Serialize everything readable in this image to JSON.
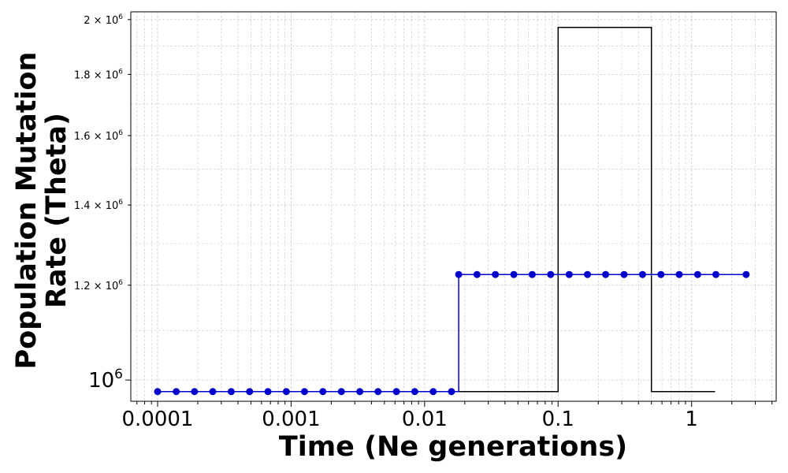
{
  "chart_data": {
    "type": "line",
    "title": "",
    "xlabel": "Time (Ne generations)",
    "ylabel_line1": "Population Mutation",
    "ylabel_line2": "Rate (Theta)",
    "x_scale": "log",
    "y_scale": "log",
    "xlim": [
      6.3e-05,
      4.3
    ],
    "ylim": [
      960000,
      2030000
    ],
    "grid": "both (major and minor), dashed",
    "x_ticks": [
      {
        "value": 0.0001,
        "label": "0.0001"
      },
      {
        "value": 0.001,
        "label": "0.001"
      },
      {
        "value": 0.01,
        "label": "0.01"
      },
      {
        "value": 0.1,
        "label": "0.1"
      },
      {
        "value": 1,
        "label": "1"
      }
    ],
    "y_ticks": [
      {
        "value": 1000000,
        "label_base": "10",
        "label_exp": "6",
        "size": "major"
      },
      {
        "value": 1200000,
        "label_base": "1.2 × 10",
        "label_exp": "6",
        "size": "minor"
      },
      {
        "value": 1400000,
        "label_base": "1.4 × 10",
        "label_exp": "6",
        "size": "minor"
      },
      {
        "value": 1600000,
        "label_base": "1.6 × 10",
        "label_exp": "6",
        "size": "minor"
      },
      {
        "value": 1800000,
        "label_base": "1.8 × 10",
        "label_exp": "6",
        "size": "minor"
      },
      {
        "value": 2000000,
        "label_base": "2 × 10",
        "label_exp": "6",
        "size": "minor"
      }
    ],
    "series": [
      {
        "color": "#000000",
        "markers": false,
        "step": true,
        "x": [
          0.0001,
          0.1,
          0.1,
          0.5,
          0.5,
          1.5
        ],
        "y": [
          978000,
          978000,
          1970000,
          1970000,
          978000,
          978000
        ]
      },
      {
        "color": "#0000cc",
        "markers": true,
        "step": true,
        "change_point": 0.018,
        "y_before": 978000,
        "y_after": 1225000,
        "x": [
          0.0001,
          0.000138,
          0.000189,
          0.000259,
          0.000356,
          0.000489,
          0.000671,
          0.000921,
          0.00126,
          0.00173,
          0.00238,
          0.00327,
          0.00448,
          0.00615,
          0.00844,
          0.0116,
          0.0159,
          0.018,
          0.0247,
          0.0339,
          0.0466,
          0.064,
          0.0879,
          0.121,
          0.166,
          0.227,
          0.312,
          0.429,
          0.589,
          0.808,
          1.11,
          1.52,
          2.56
        ]
      }
    ]
  }
}
